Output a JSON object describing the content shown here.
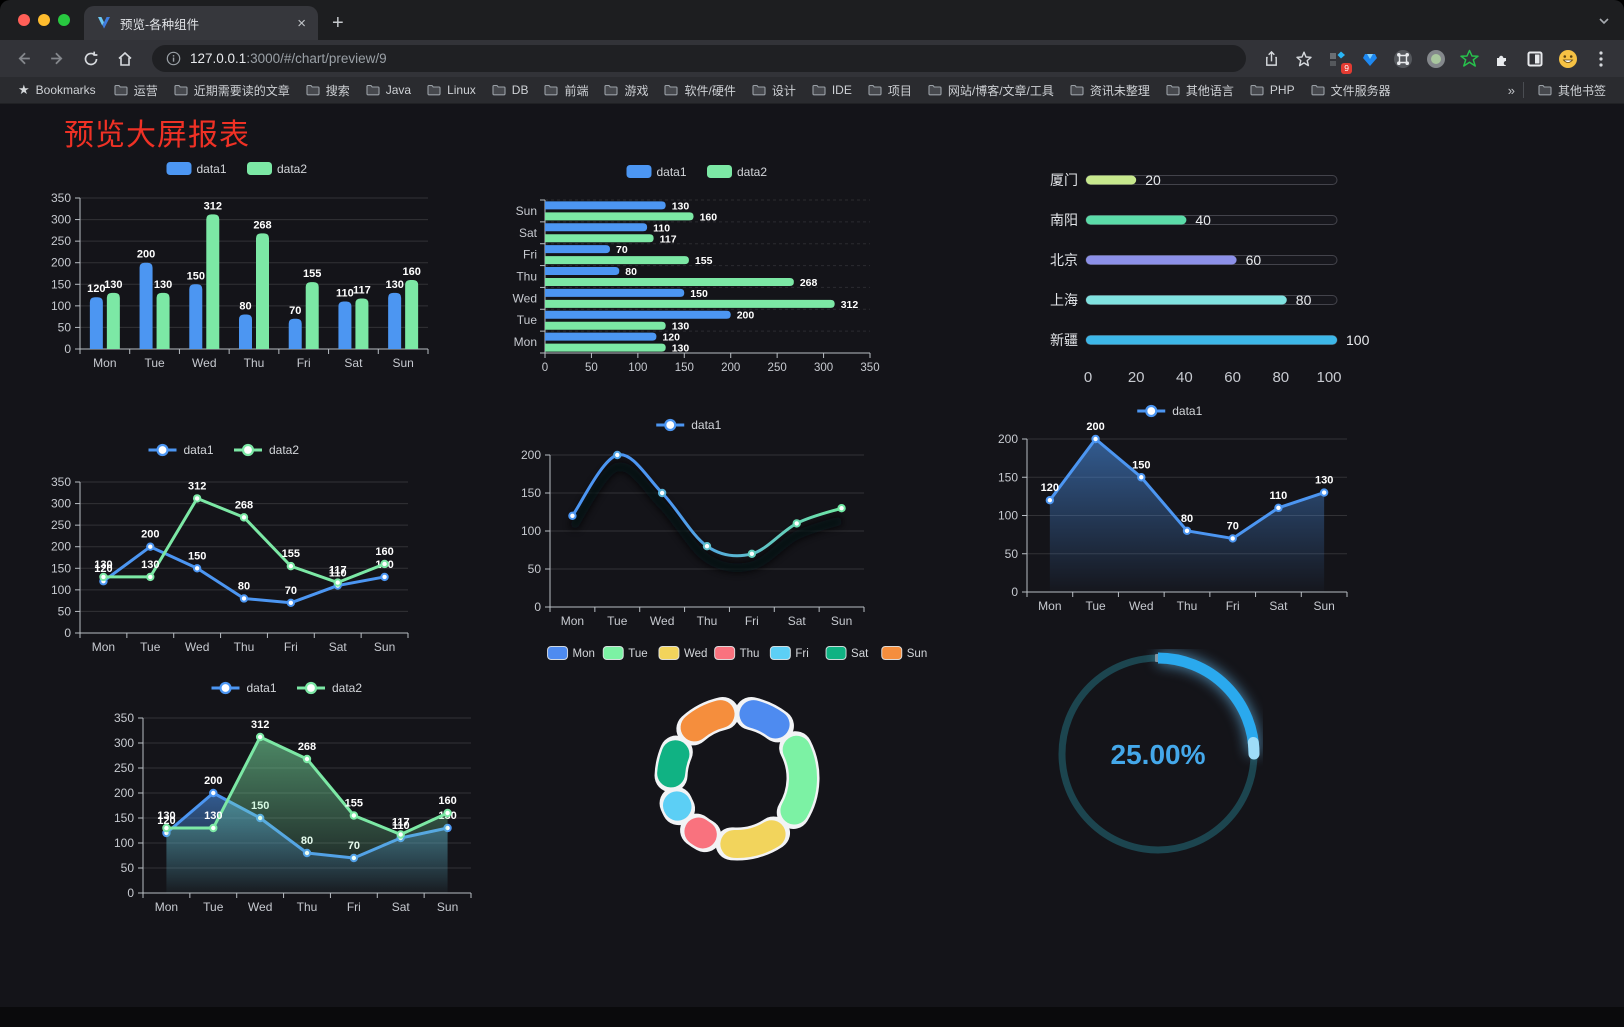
{
  "browser": {
    "tab": {
      "title": "预览-各种组件",
      "close_glyph": "×",
      "new_tab_glyph": "+"
    },
    "url": {
      "host": "127.0.0.1",
      "rest": ":3000/#/chart/preview/9"
    },
    "toolbar": {
      "extension_badge": "9"
    },
    "bookmarks": {
      "label": "Bookmarks",
      "items": [
        "运营",
        "近期需要读的文章",
        "搜索",
        "Java",
        "Linux",
        "DB",
        "前端",
        "游戏",
        "软件/硬件",
        "设计",
        "IDE",
        "项目",
        "网站/博客/文章/工具",
        "资讯未整理",
        "其他语言",
        "PHP",
        "文件服务器"
      ],
      "overflow_glyph": "»",
      "other_label": "其他书签"
    }
  },
  "page": {
    "title": "预览大屏报表"
  },
  "chart_data": [
    {
      "id": "bar-grouped",
      "type": "bar",
      "categories": [
        "Mon",
        "Tue",
        "Wed",
        "Thu",
        "Fri",
        "Sat",
        "Sun"
      ],
      "series": [
        {
          "name": "data1",
          "color": "#4C96F2",
          "values": [
            120,
            200,
            150,
            80,
            70,
            110,
            130
          ]
        },
        {
          "name": "data2",
          "color": "#7CE8A5",
          "values": [
            130,
            130,
            312,
            268,
            155,
            117,
            160
          ]
        }
      ],
      "ylim": [
        0,
        350
      ],
      "ytick": 50,
      "show_labels": true,
      "legend_style": "rect"
    },
    {
      "id": "bar-horizontal",
      "type": "hbar",
      "categories": [
        "Mon",
        "Tue",
        "Wed",
        "Thu",
        "Fri",
        "Sat",
        "Sun"
      ],
      "series": [
        {
          "name": "data1",
          "color": "#4C96F2",
          "values": [
            120,
            200,
            150,
            80,
            70,
            110,
            130
          ]
        },
        {
          "name": "data2",
          "color": "#7CE8A5",
          "values": [
            130,
            130,
            312,
            268,
            155,
            117,
            160
          ]
        }
      ],
      "xlim": [
        0,
        350
      ],
      "xtick": 50,
      "show_labels": true,
      "legend_style": "rect"
    },
    {
      "id": "progress-bars",
      "type": "progress",
      "items": [
        {
          "label": "厦门",
          "value": 20,
          "color": "#C7E88D"
        },
        {
          "label": "南阳",
          "value": 40,
          "color": "#5BDBA8"
        },
        {
          "label": "北京",
          "value": 60,
          "color": "#8C90E8"
        },
        {
          "label": "上海",
          "value": 80,
          "color": "#80E2E0"
        },
        {
          "label": "新疆",
          "value": 100,
          "color": "#3DB7E8"
        }
      ],
      "xlim": [
        0,
        100
      ],
      "xticks": [
        0,
        20,
        40,
        60,
        80,
        100
      ]
    },
    {
      "id": "line-two-series",
      "type": "line",
      "categories": [
        "Mon",
        "Tue",
        "Wed",
        "Thu",
        "Fri",
        "Sat",
        "Sun"
      ],
      "series": [
        {
          "name": "data1",
          "color": "#4C96F2",
          "values": [
            120,
            200,
            150,
            80,
            70,
            110,
            130
          ]
        },
        {
          "name": "data2",
          "color": "#7CE8A5",
          "values": [
            130,
            130,
            312,
            268,
            155,
            117,
            160
          ]
        }
      ],
      "ylim": [
        0,
        350
      ],
      "ytick": 50,
      "show_labels": true,
      "legend_style": "line"
    },
    {
      "id": "line-gradient",
      "type": "line",
      "categories": [
        "Mon",
        "Tue",
        "Wed",
        "Thu",
        "Fri",
        "Sat",
        "Sun"
      ],
      "series": [
        {
          "name": "data1",
          "color": "#4C96F2",
          "color2": "#6FE8A2",
          "values": [
            120,
            200,
            150,
            80,
            70,
            110,
            130
          ]
        }
      ],
      "ylim": [
        0,
        200
      ],
      "ytick": 50,
      "show_labels": false,
      "smooth": true,
      "shadow": true,
      "legend_style": "line"
    },
    {
      "id": "area-single",
      "type": "line",
      "categories": [
        "Mon",
        "Tue",
        "Wed",
        "Thu",
        "Fri",
        "Sat",
        "Sun"
      ],
      "series": [
        {
          "name": "data1",
          "color": "#4C96F2",
          "values": [
            120,
            200,
            150,
            80,
            70,
            110,
            130
          ],
          "area": true
        }
      ],
      "ylim": [
        0,
        200
      ],
      "ytick": 50,
      "show_labels": true,
      "legend_style": "line"
    },
    {
      "id": "area-two-series",
      "type": "line",
      "categories": [
        "Mon",
        "Tue",
        "Wed",
        "Thu",
        "Fri",
        "Sat",
        "Sun"
      ],
      "series": [
        {
          "name": "data1",
          "color": "#4C96F2",
          "values": [
            120,
            200,
            150,
            80,
            70,
            110,
            130
          ],
          "area": true
        },
        {
          "name": "data2",
          "color": "#7CE8A5",
          "values": [
            130,
            130,
            312,
            268,
            155,
            117,
            160
          ],
          "area": true
        }
      ],
      "ylim": [
        0,
        350
      ],
      "ytick": 50,
      "show_labels": true,
      "legend_style": "line"
    },
    {
      "id": "donut",
      "type": "donut",
      "items": [
        {
          "label": "Mon",
          "value": 120,
          "color": "#4E8BF0"
        },
        {
          "label": "Tue",
          "value": 200,
          "color": "#7CF2A4"
        },
        {
          "label": "Wed",
          "value": 150,
          "color": "#F2D45C"
        },
        {
          "label": "Thu",
          "value": 80,
          "color": "#F9727E"
        },
        {
          "label": "Fri",
          "value": 70,
          "color": "#5CCFF5"
        },
        {
          "label": "Sat",
          "value": 110,
          "color": "#10B283"
        },
        {
          "label": "Sun",
          "value": 130,
          "color": "#F58E3D"
        }
      ]
    },
    {
      "id": "gauge",
      "type": "gauge",
      "value_text": "25.00%",
      "percent": 25,
      "color": "#2AA9EE",
      "track_color": "#1C454F",
      "text_color": "#44A8EA"
    }
  ]
}
